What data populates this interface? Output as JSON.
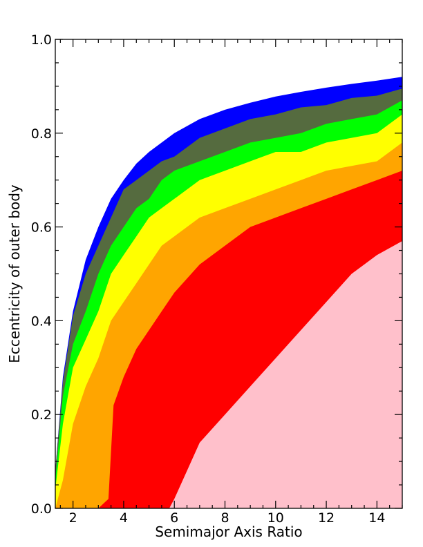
{
  "chart_data": {
    "type": "area",
    "title": "",
    "xlabel": "Semimajor Axis Ratio",
    "ylabel": "Eccentricity of outer body",
    "xlim": [
      1.3,
      15
    ],
    "ylim": [
      0.0,
      1.0
    ],
    "xticks": [
      2,
      4,
      6,
      8,
      10,
      12,
      14
    ],
    "xtick_labels": [
      "2",
      "4",
      "6",
      "8",
      "10",
      "12",
      "14"
    ],
    "yticks": [
      0.0,
      0.2,
      0.4,
      0.6,
      0.8,
      1.0
    ],
    "ytick_labels": [
      "0.0",
      "0.2",
      "0.4",
      "0.6",
      "0.8",
      "1.0"
    ],
    "grid": false,
    "legend": "none",
    "note_boundaries": "Each region is bounded above by the listed eccentricity curve; regions are stacked from the outermost (blue) down to the innermost (pink).",
    "regions": [
      {
        "color": "#0000ff",
        "x": [
          1.3,
          1.6,
          2.0,
          2.5,
          3.0,
          3.5,
          4.0,
          4.5,
          5.0,
          5.5,
          6.0,
          7.0,
          8.0,
          9.0,
          10.0,
          11.0,
          12.0,
          13.0,
          14.0,
          15.0
        ],
        "y": [
          0.08,
          0.28,
          0.42,
          0.53,
          0.6,
          0.66,
          0.7,
          0.735,
          0.76,
          0.78,
          0.8,
          0.83,
          0.85,
          0.865,
          0.878,
          0.888,
          0.897,
          0.905,
          0.912,
          0.92
        ]
      },
      {
        "color": "#556b3f",
        "x": [
          1.3,
          1.6,
          2.0,
          2.5,
          3.0,
          3.5,
          4.0,
          4.5,
          5.0,
          5.5,
          6.0,
          7.0,
          8.0,
          9.0,
          10.0,
          11.0,
          12.0,
          13.0,
          14.0,
          15.0
        ],
        "y": [
          0.08,
          0.27,
          0.41,
          0.5,
          0.56,
          0.62,
          0.68,
          0.7,
          0.72,
          0.74,
          0.75,
          0.79,
          0.81,
          0.83,
          0.84,
          0.855,
          0.86,
          0.875,
          0.88,
          0.895
        ]
      },
      {
        "color": "#00ff00",
        "x": [
          1.3,
          1.6,
          2.0,
          2.5,
          3.0,
          3.5,
          4.0,
          4.5,
          5.0,
          5.5,
          6.0,
          7.0,
          8.0,
          9.0,
          10.0,
          11.0,
          12.0,
          13.0,
          14.0,
          15.0
        ],
        "y": [
          0.06,
          0.24,
          0.35,
          0.42,
          0.5,
          0.56,
          0.6,
          0.64,
          0.66,
          0.7,
          0.72,
          0.74,
          0.76,
          0.78,
          0.79,
          0.8,
          0.82,
          0.83,
          0.84,
          0.87
        ]
      },
      {
        "color": "#ffff00",
        "x": [
          1.3,
          1.6,
          2.0,
          2.5,
          3.0,
          3.5,
          4.0,
          4.5,
          5.0,
          5.5,
          6.0,
          7.0,
          8.0,
          9.0,
          10.0,
          11.0,
          12.0,
          13.0,
          14.0,
          15.0
        ],
        "y": [
          0.04,
          0.18,
          0.3,
          0.36,
          0.42,
          0.5,
          0.54,
          0.58,
          0.62,
          0.64,
          0.66,
          0.7,
          0.72,
          0.74,
          0.76,
          0.76,
          0.78,
          0.79,
          0.8,
          0.84
        ]
      },
      {
        "color": "#ffa500",
        "x": [
          1.3,
          1.6,
          2.0,
          2.5,
          3.0,
          3.5,
          4.0,
          4.5,
          5.0,
          5.5,
          6.0,
          7.0,
          8.0,
          9.0,
          10.0,
          11.0,
          12.0,
          13.0,
          14.0,
          15.0
        ],
        "y": [
          0.0,
          0.06,
          0.18,
          0.26,
          0.32,
          0.4,
          0.44,
          0.48,
          0.52,
          0.56,
          0.58,
          0.62,
          0.64,
          0.66,
          0.68,
          0.7,
          0.72,
          0.73,
          0.74,
          0.78
        ]
      },
      {
        "color": "#ff0000",
        "x": [
          1.3,
          2.0,
          3.0,
          3.4,
          3.6,
          4.0,
          4.5,
          5.0,
          5.5,
          6.0,
          7.0,
          8.0,
          9.0,
          10.0,
          11.0,
          12.0,
          13.0,
          14.0,
          15.0
        ],
        "y": [
          0.0,
          0.0,
          0.0,
          0.02,
          0.22,
          0.28,
          0.34,
          0.38,
          0.42,
          0.46,
          0.52,
          0.56,
          0.6,
          0.62,
          0.64,
          0.66,
          0.68,
          0.7,
          0.72
        ]
      },
      {
        "color": "#ffc0cb",
        "x": [
          1.3,
          5.8,
          6.0,
          6.5,
          7.0,
          8.0,
          9.0,
          10.0,
          11.0,
          12.0,
          13.0,
          14.0,
          15.0
        ],
        "y": [
          0.0,
          0.0,
          0.02,
          0.08,
          0.14,
          0.2,
          0.26,
          0.32,
          0.38,
          0.44,
          0.5,
          0.54,
          0.57
        ]
      }
    ]
  }
}
